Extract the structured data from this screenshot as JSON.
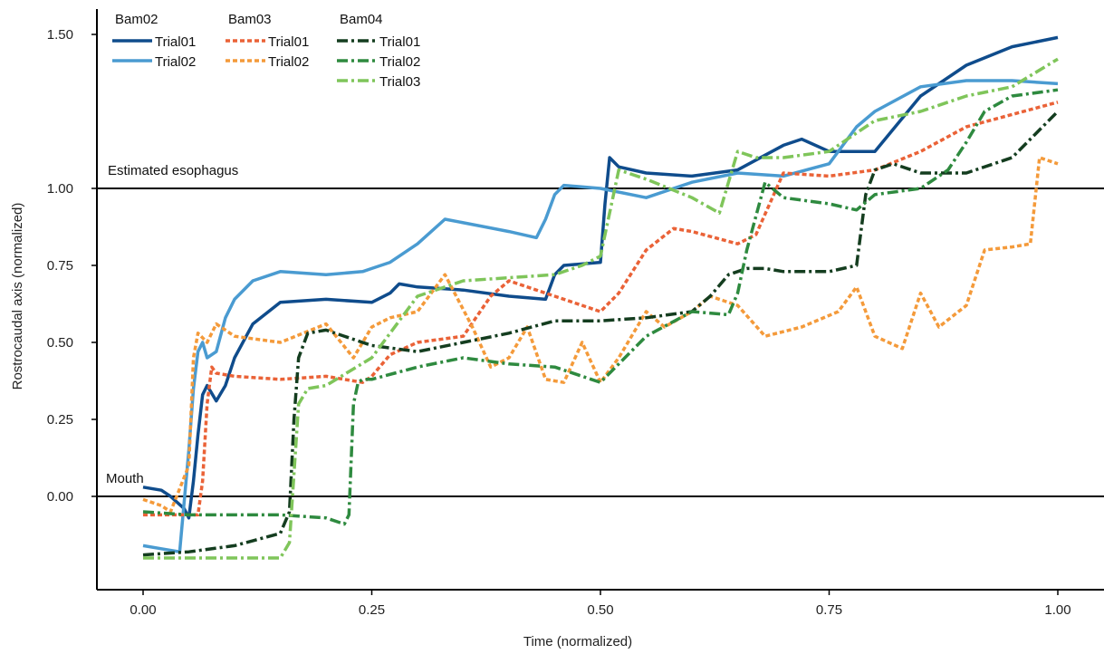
{
  "chart_data": {
    "type": "line",
    "xlabel": "Time (normalized)",
    "ylabel": "Rostrocaudal axis (normalized)",
    "xlim": [
      -0.05,
      1.05
    ],
    "ylim": [
      -0.3,
      1.6
    ],
    "x_ticks": [
      0.0,
      0.25,
      0.5,
      0.75,
      1.0
    ],
    "x_tick_labels": [
      "0.00",
      "0.25",
      "0.50",
      "0.75",
      "1.00"
    ],
    "y_ticks": [
      0.0,
      0.25,
      0.5,
      0.75,
      1.0,
      1.5
    ],
    "y_tick_labels": [
      "0.00",
      "0.25",
      "0.50",
      "0.75",
      "1.00",
      "1.50"
    ],
    "grid": false,
    "legend_placement": "top-left",
    "reference_lines": [
      {
        "y": 1.0,
        "label": "Estimated esophagus"
      },
      {
        "y": 0.0,
        "label": "Mouth"
      }
    ],
    "legend_groups": [
      {
        "title": "Bam02",
        "entries": [
          {
            "name": "Trial01",
            "color": "#0f4c8c",
            "style": "solid"
          },
          {
            "name": "Trial02",
            "color": "#4a9bd1",
            "style": "solid"
          }
        ]
      },
      {
        "title": "Bam03",
        "entries": [
          {
            "name": "Trial01",
            "color": "#ea6237",
            "style": "dotted"
          },
          {
            "name": "Trial02",
            "color": "#f49a3a",
            "style": "dotted"
          }
        ]
      },
      {
        "title": "Bam04",
        "entries": [
          {
            "name": "Trial01",
            "color": "#143d1f",
            "style": "dashdot"
          },
          {
            "name": "Trial02",
            "color": "#2e8a3f",
            "style": "dashdot"
          },
          {
            "name": "Trial03",
            "color": "#7fc55a",
            "style": "dashdot"
          }
        ]
      }
    ],
    "series": [
      {
        "group": "Bam02",
        "name": "Trial01",
        "color": "#0f4c8c",
        "style": "solid",
        "x": [
          0.0,
          0.02,
          0.03,
          0.045,
          0.05,
          0.055,
          0.06,
          0.065,
          0.07,
          0.08,
          0.09,
          0.1,
          0.12,
          0.15,
          0.2,
          0.25,
          0.27,
          0.28,
          0.3,
          0.35,
          0.4,
          0.44,
          0.45,
          0.46,
          0.5,
          0.505,
          0.51,
          0.52,
          0.55,
          0.6,
          0.65,
          0.7,
          0.72,
          0.75,
          0.8,
          0.85,
          0.9,
          0.95,
          1.0
        ],
        "y": [
          0.03,
          0.02,
          0.0,
          -0.04,
          -0.07,
          0.05,
          0.2,
          0.33,
          0.36,
          0.31,
          0.36,
          0.45,
          0.56,
          0.63,
          0.64,
          0.63,
          0.66,
          0.69,
          0.68,
          0.67,
          0.65,
          0.64,
          0.72,
          0.75,
          0.76,
          0.95,
          1.1,
          1.07,
          1.05,
          1.04,
          1.06,
          1.14,
          1.16,
          1.12,
          1.12,
          1.3,
          1.4,
          1.46,
          1.49
        ]
      },
      {
        "group": "Bam02",
        "name": "Trial02",
        "color": "#4a9bd1",
        "style": "solid",
        "x": [
          0.0,
          0.02,
          0.04,
          0.05,
          0.055,
          0.06,
          0.065,
          0.07,
          0.08,
          0.09,
          0.1,
          0.12,
          0.15,
          0.2,
          0.24,
          0.25,
          0.27,
          0.3,
          0.33,
          0.4,
          0.43,
          0.44,
          0.45,
          0.46,
          0.5,
          0.55,
          0.6,
          0.65,
          0.7,
          0.75,
          0.78,
          0.8,
          0.85,
          0.9,
          0.95,
          1.0
        ],
        "y": [
          -0.16,
          -0.17,
          -0.18,
          0.15,
          0.35,
          0.47,
          0.5,
          0.45,
          0.47,
          0.58,
          0.64,
          0.7,
          0.73,
          0.72,
          0.73,
          0.74,
          0.76,
          0.82,
          0.9,
          0.86,
          0.84,
          0.9,
          0.98,
          1.01,
          1.0,
          0.97,
          1.02,
          1.05,
          1.04,
          1.08,
          1.2,
          1.25,
          1.33,
          1.35,
          1.35,
          1.34
        ]
      },
      {
        "group": "Bam03",
        "name": "Trial01",
        "color": "#ea6237",
        "style": "dotted",
        "x": [
          0.0,
          0.03,
          0.06,
          0.065,
          0.07,
          0.075,
          0.08,
          0.1,
          0.15,
          0.2,
          0.24,
          0.25,
          0.27,
          0.3,
          0.35,
          0.38,
          0.4,
          0.45,
          0.5,
          0.52,
          0.55,
          0.58,
          0.6,
          0.65,
          0.67,
          0.7,
          0.75,
          0.8,
          0.85,
          0.9,
          0.95,
          1.0
        ],
        "y": [
          -0.06,
          -0.06,
          -0.06,
          0.05,
          0.3,
          0.42,
          0.4,
          0.39,
          0.38,
          0.39,
          0.37,
          0.39,
          0.46,
          0.5,
          0.52,
          0.65,
          0.7,
          0.65,
          0.6,
          0.66,
          0.8,
          0.87,
          0.86,
          0.82,
          0.85,
          1.05,
          1.04,
          1.06,
          1.12,
          1.2,
          1.24,
          1.28
        ]
      },
      {
        "group": "Bam03",
        "name": "Trial02",
        "color": "#f49a3a",
        "style": "dotted",
        "x": [
          0.0,
          0.02,
          0.03,
          0.05,
          0.055,
          0.06,
          0.07,
          0.08,
          0.1,
          0.15,
          0.2,
          0.23,
          0.25,
          0.27,
          0.3,
          0.33,
          0.36,
          0.38,
          0.4,
          0.42,
          0.44,
          0.46,
          0.48,
          0.5,
          0.52,
          0.55,
          0.57,
          0.6,
          0.62,
          0.65,
          0.68,
          0.72,
          0.76,
          0.78,
          0.8,
          0.83,
          0.85,
          0.87,
          0.9,
          0.92,
          0.95,
          0.97,
          0.98,
          1.0
        ],
        "y": [
          -0.01,
          -0.03,
          -0.05,
          0.1,
          0.45,
          0.53,
          0.5,
          0.56,
          0.52,
          0.5,
          0.56,
          0.45,
          0.55,
          0.58,
          0.6,
          0.72,
          0.55,
          0.42,
          0.45,
          0.55,
          0.38,
          0.37,
          0.5,
          0.37,
          0.45,
          0.6,
          0.55,
          0.6,
          0.65,
          0.62,
          0.52,
          0.55,
          0.6,
          0.68,
          0.52,
          0.48,
          0.66,
          0.55,
          0.62,
          0.8,
          0.81,
          0.82,
          1.1,
          1.08
        ]
      },
      {
        "group": "Bam04",
        "name": "Trial01",
        "color": "#143d1f",
        "style": "dashdot",
        "x": [
          0.0,
          0.05,
          0.1,
          0.15,
          0.16,
          0.165,
          0.17,
          0.18,
          0.2,
          0.25,
          0.3,
          0.35,
          0.4,
          0.45,
          0.5,
          0.55,
          0.6,
          0.62,
          0.64,
          0.65,
          0.66,
          0.68,
          0.7,
          0.75,
          0.78,
          0.79,
          0.8,
          0.82,
          0.85,
          0.9,
          0.95,
          1.0
        ],
        "y": [
          -0.19,
          -0.18,
          -0.16,
          -0.12,
          -0.05,
          0.25,
          0.45,
          0.53,
          0.54,
          0.49,
          0.47,
          0.5,
          0.53,
          0.57,
          0.57,
          0.58,
          0.6,
          0.65,
          0.72,
          0.73,
          0.74,
          0.74,
          0.73,
          0.73,
          0.75,
          0.98,
          1.06,
          1.08,
          1.05,
          1.05,
          1.1,
          1.25
        ]
      },
      {
        "group": "Bam04",
        "name": "Trial02",
        "color": "#2e8a3f",
        "style": "dashdot",
        "x": [
          0.0,
          0.05,
          0.1,
          0.15,
          0.2,
          0.22,
          0.225,
          0.23,
          0.235,
          0.24,
          0.25,
          0.3,
          0.35,
          0.4,
          0.45,
          0.5,
          0.55,
          0.6,
          0.64,
          0.65,
          0.66,
          0.68,
          0.7,
          0.75,
          0.78,
          0.8,
          0.85,
          0.88,
          0.9,
          0.92,
          0.95,
          1.0
        ],
        "y": [
          -0.05,
          -0.06,
          -0.06,
          -0.06,
          -0.07,
          -0.09,
          -0.06,
          0.3,
          0.37,
          0.38,
          0.38,
          0.42,
          0.45,
          0.43,
          0.42,
          0.37,
          0.52,
          0.6,
          0.59,
          0.66,
          0.8,
          1.02,
          0.97,
          0.95,
          0.93,
          0.98,
          1.0,
          1.06,
          1.15,
          1.25,
          1.3,
          1.32
        ]
      },
      {
        "group": "Bam04",
        "name": "Trial03",
        "color": "#7fc55a",
        "style": "dashdot",
        "x": [
          0.0,
          0.05,
          0.1,
          0.15,
          0.16,
          0.17,
          0.18,
          0.2,
          0.25,
          0.3,
          0.33,
          0.35,
          0.4,
          0.45,
          0.48,
          0.5,
          0.52,
          0.55,
          0.6,
          0.63,
          0.65,
          0.67,
          0.7,
          0.75,
          0.8,
          0.85,
          0.9,
          0.95,
          1.0
        ],
        "y": [
          -0.2,
          -0.2,
          -0.2,
          -0.2,
          -0.15,
          0.3,
          0.35,
          0.36,
          0.45,
          0.65,
          0.68,
          0.7,
          0.71,
          0.72,
          0.75,
          0.78,
          1.06,
          1.03,
          0.97,
          0.92,
          1.12,
          1.1,
          1.1,
          1.12,
          1.22,
          1.25,
          1.3,
          1.33,
          1.42
        ]
      }
    ]
  }
}
